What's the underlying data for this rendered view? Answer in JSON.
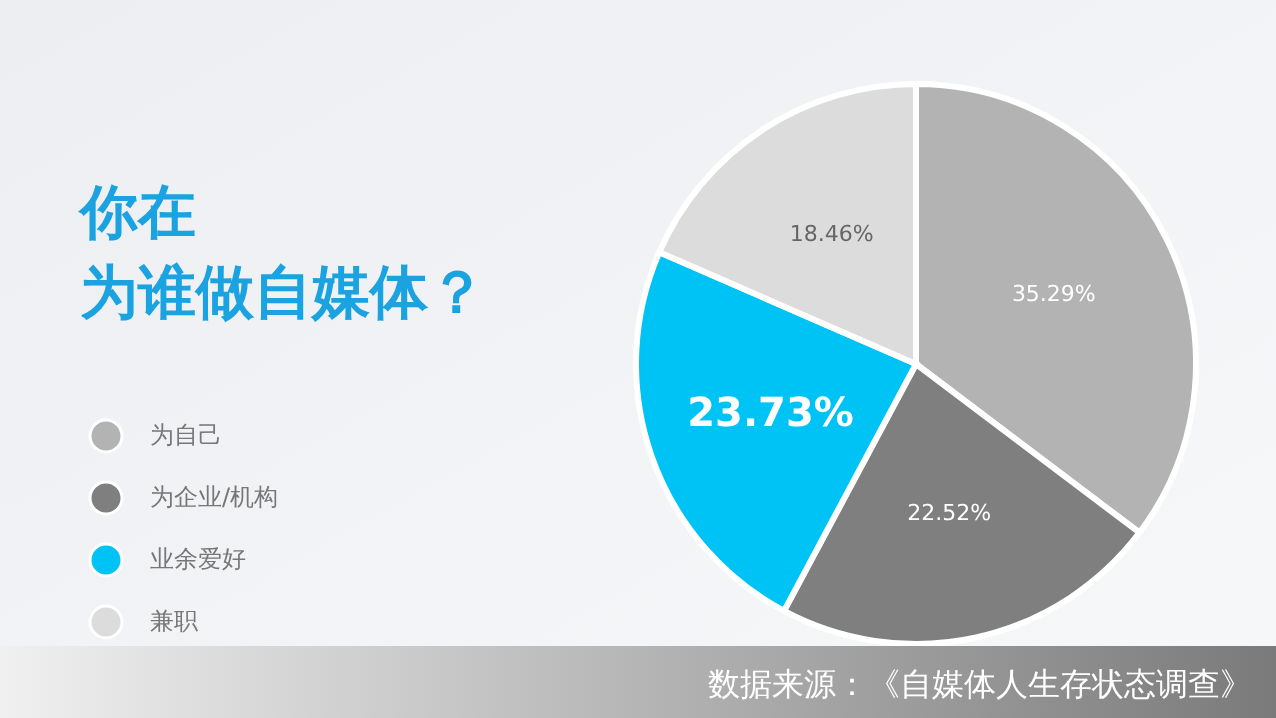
{
  "chart_data": {
    "type": "pie",
    "title": "你在为谁做自媒体？",
    "categories": [
      "为自己",
      "为企业/机构",
      "业余爱好",
      "兼职"
    ],
    "values": [
      35.29,
      22.52,
      23.73,
      18.46
    ],
    "colors": [
      "#b3b3b3",
      "#7f7f7f",
      "#00c3f5",
      "#dcdcdc"
    ],
    "value_labels": [
      "35.29%",
      "22.52%",
      "23.73%",
      "18.46%"
    ],
    "legend": "left",
    "annotations": [
      "数据来源：《自媒体人生存状态调查》"
    ]
  }
}
